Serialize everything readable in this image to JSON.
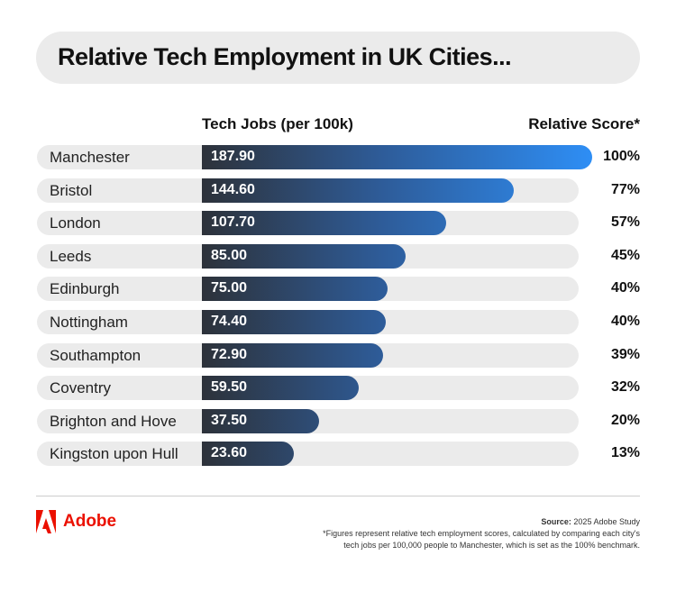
{
  "title": "Relative Tech Employment in UK Cities...",
  "chart_data": {
    "type": "bar",
    "title": "Relative Tech Employment in UK Cities...",
    "value_header": "Tech Jobs (per 100k)",
    "score_header": "Relative Score*",
    "categories": [
      "Manchester",
      "Bristol",
      "London",
      "Leeds",
      "Edinburgh",
      "Nottingham",
      "Southampton",
      "Coventry",
      "Brighton and Hove",
      "Kingston upon Hull"
    ],
    "values": [
      187.9,
      144.6,
      107.7,
      85.0,
      75.0,
      74.4,
      72.9,
      59.5,
      37.5,
      23.6
    ],
    "value_labels": [
      "187.90",
      "144.60",
      "107.70",
      "85.00",
      "75.00",
      "74.40",
      "72.90",
      "59.50",
      "37.50",
      "23.60"
    ],
    "scores": [
      "100%",
      "77%",
      "57%",
      "45%",
      "40%",
      "40%",
      "39%",
      "32%",
      "20%",
      "13%"
    ]
  },
  "footer": {
    "brand": "Adobe",
    "source_label": "Source:",
    "source": " 2025 Adobe Study",
    "note1": "*Figures represent relative tech employment scores, calculated by comparing each city's",
    "note2": "tech jobs per 100,000 people to Manchester, which is set as the 100% benchmark."
  },
  "colors": {
    "brand": "#eb1000",
    "bar_start": "#2d323a",
    "bar_end": "#2e8ef5"
  }
}
